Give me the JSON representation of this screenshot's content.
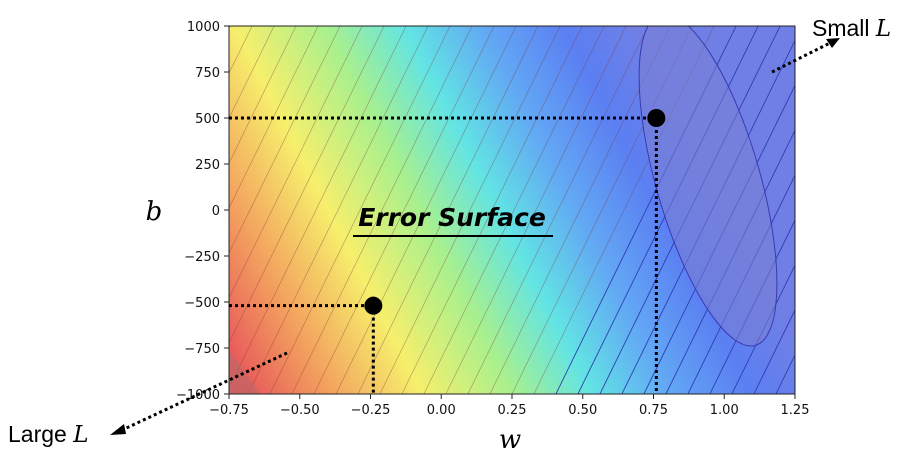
{
  "chart_data": {
    "type": "heatmap",
    "title": "Error Surface",
    "xlabel": "w",
    "ylabel": "b",
    "xlim": [
      -0.75,
      1.25
    ],
    "ylim": [
      -1000,
      1000
    ],
    "x_ticks": [
      "−0.75",
      "−0.50",
      "−0.25",
      "0.00",
      "0.25",
      "0.50",
      "0.75",
      "1.00",
      "1.25"
    ],
    "x_tick_values": [
      -0.75,
      -0.5,
      -0.25,
      0,
      0.25,
      0.5,
      0.75,
      1.0,
      1.25
    ],
    "y_ticks": [
      "1000",
      "750",
      "500",
      "250",
      "0",
      "−250",
      "−500",
      "−750",
      "−1000"
    ],
    "y_tick_values": [
      1000,
      750,
      500,
      250,
      0,
      -250,
      -500,
      -750,
      -1000
    ],
    "points": [
      {
        "x": 0.76,
        "y": 500
      },
      {
        "x": -0.24,
        "y": -520
      }
    ],
    "minimum": {
      "x": 0.95,
      "y": 100
    },
    "colormap": "rainbow (red = large L, blue = small L)",
    "annotations": {
      "small": {
        "prefix": "Small ",
        "var": "L"
      },
      "large": {
        "prefix": "Large ",
        "var": "L"
      }
    }
  }
}
